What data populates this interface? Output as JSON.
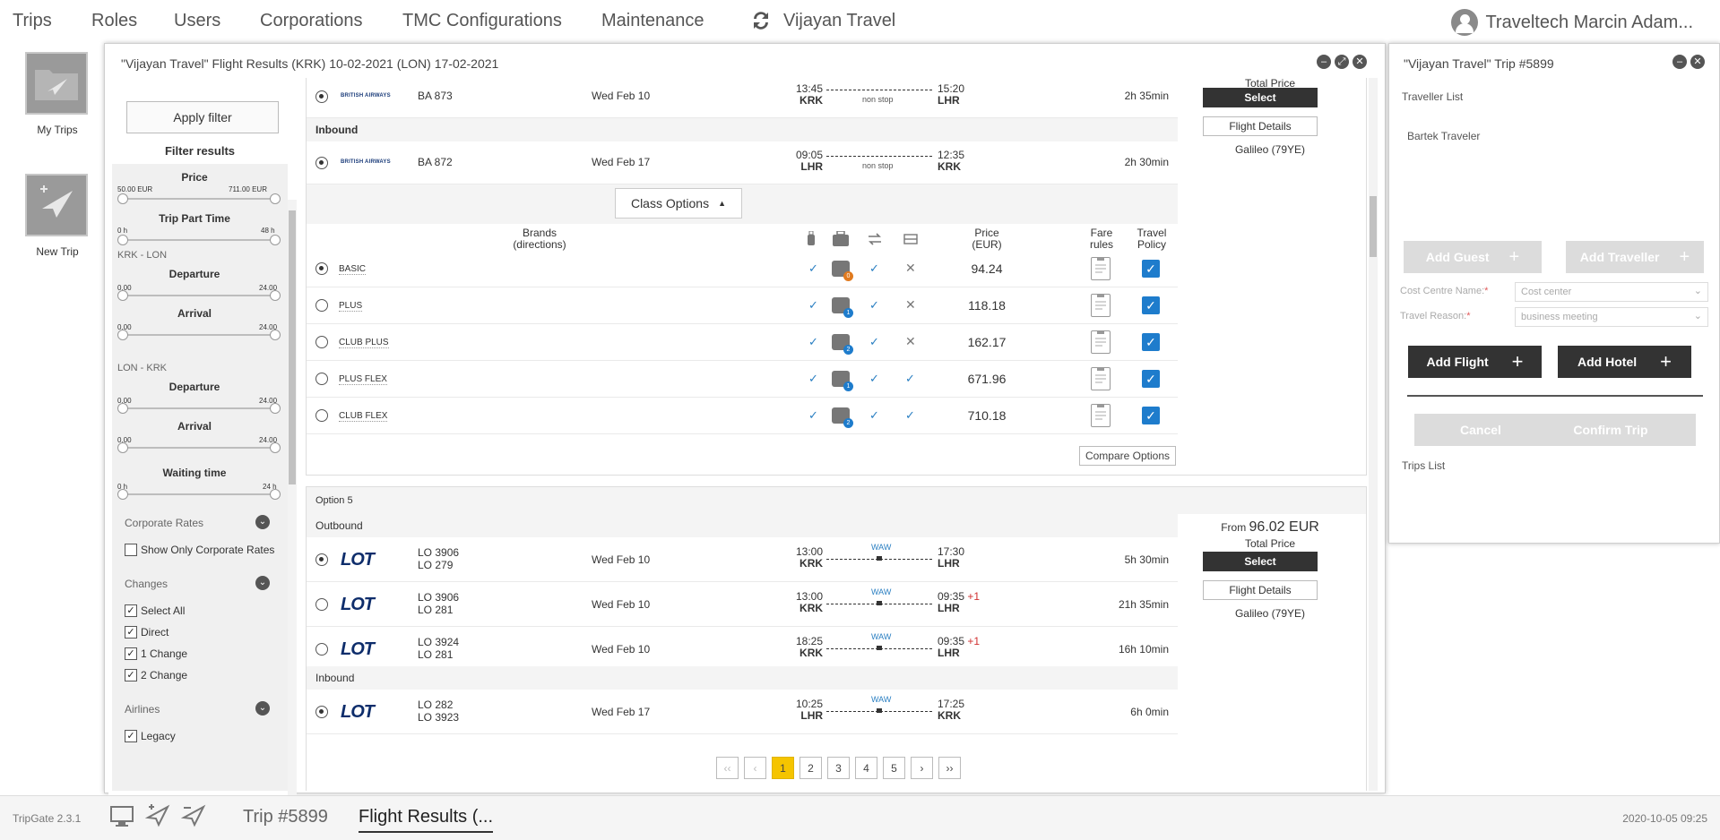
{
  "topnav": {
    "items": [
      "Trips",
      "Roles",
      "Users",
      "Corporations",
      "TMC Configurations",
      "Maintenance"
    ],
    "agency": "Vijayan Travel",
    "user": "Traveltech Marcin Adam..."
  },
  "apps": [
    {
      "label": "My Trips",
      "icon": "my-trips-icon"
    },
    {
      "label": "New Trip",
      "icon": "new-trip-icon"
    }
  ],
  "flight_window": {
    "title": "\"Vijayan Travel\" Flight Results (KRK) 10-02-2021 (LON) 17-02-2021"
  },
  "filters": {
    "apply_label": "Apply filter",
    "title": "Filter results",
    "price": {
      "label": "Price",
      "min": "50.00 EUR",
      "max": "711.00 EUR"
    },
    "trip_part_time": {
      "label": "Trip Part Time",
      "min": "0 h",
      "max": "48 h"
    },
    "route1": "KRK - LON",
    "route2": "LON - KRK",
    "departure": "Departure",
    "arrival": "Arrival",
    "time_min": "0.00",
    "time_max": "24.00",
    "waiting": {
      "label": "Waiting time",
      "min": "0 h",
      "max": "24 h"
    },
    "corporate_rates": {
      "label": "Corporate Rates",
      "checkbox": "Show Only Corporate Rates"
    },
    "changes": {
      "label": "Changes",
      "options": [
        "Select All",
        "Direct",
        "1 Change",
        "2 Change"
      ]
    },
    "airlines": {
      "label": "Airlines",
      "first": "Legacy"
    }
  },
  "option4": {
    "outbound": {
      "flight": "BA 873",
      "date": "Wed Feb 10",
      "dep_time": "13:45",
      "dep": "KRK",
      "arr_time": "15:20",
      "arr": "LHR",
      "stops": "non stop",
      "duration": "2h 35min",
      "airline": "BRITISH AIRWAYS"
    },
    "inbound_label": "Inbound",
    "inbound": {
      "flight": "BA 872",
      "date": "Wed Feb 17",
      "dep_time": "09:05",
      "dep": "LHR",
      "arr_time": "12:35",
      "arr": "KRK",
      "stops": "non stop",
      "duration": "2h 30min",
      "airline": "BRITISH AIRWAYS"
    },
    "total_price_label": "Total Price",
    "select_label": "Select",
    "details_label": "Flight Details",
    "source": "Galileo (79YE)",
    "class_options_label": "Class Options",
    "headers": {
      "brands": "Brands",
      "directions": "(directions)",
      "price": "Price",
      "price_unit": "(EUR)",
      "fare": "Fare",
      "fare2": "rules",
      "policy": "Travel",
      "policy2": "Policy"
    },
    "brands": [
      {
        "name": "BASIC",
        "price": "94.24",
        "bags": "0",
        "badge_color": "#e07a1f",
        "change": "true",
        "refund": "false",
        "selected": true
      },
      {
        "name": "PLUS",
        "price": "118.18",
        "bags": "1",
        "badge_color": "#1e7ccc",
        "change": "true",
        "refund": "false",
        "selected": false
      },
      {
        "name": "CLUB PLUS",
        "price": "162.17",
        "bags": "2",
        "badge_color": "#1e7ccc",
        "change": "true",
        "refund": "false",
        "selected": false
      },
      {
        "name": "PLUS FLEX",
        "price": "671.96",
        "bags": "1",
        "badge_color": "#1e7ccc",
        "change": "true",
        "refund": "true",
        "selected": false
      },
      {
        "name": "CLUB FLEX",
        "price": "710.18",
        "bags": "2",
        "badge_color": "#1e7ccc",
        "change": "true",
        "refund": "true",
        "selected": false
      }
    ],
    "compare_label": "Compare Options"
  },
  "option5": {
    "title": "Option 5",
    "outbound_label": "Outbound",
    "inbound_label": "Inbound",
    "from_label": "From",
    "price": "96.02 EUR",
    "total_price_label": "Total Price",
    "select_label": "Select",
    "details_label": "Flight Details",
    "source": "Galileo (79YE)",
    "outbound": [
      {
        "f1": "LO 3906",
        "f2": "LO 279",
        "date": "Wed Feb 10",
        "dep_time": "13:00",
        "dep": "KRK",
        "arr_time": "17:30",
        "plus": "",
        "arr": "LHR",
        "via": "WAW",
        "duration": "5h 30min",
        "selected": true
      },
      {
        "f1": "LO 3906",
        "f2": "LO 281",
        "date": "Wed Feb 10",
        "dep_time": "13:00",
        "dep": "KRK",
        "arr_time": "09:35",
        "plus": "+1",
        "arr": "LHR",
        "via": "WAW",
        "duration": "21h 35min",
        "selected": false
      },
      {
        "f1": "LO 3924",
        "f2": "LO 281",
        "date": "Wed Feb 10",
        "dep_time": "18:25",
        "dep": "KRK",
        "arr_time": "09:35",
        "plus": "+1",
        "arr": "LHR",
        "via": "WAW",
        "duration": "16h 10min",
        "selected": false
      }
    ],
    "inbound": [
      {
        "f1": "LO 282",
        "f2": "LO 3923",
        "date": "Wed Feb 17",
        "dep_time": "10:25",
        "dep": "LHR",
        "arr_time": "17:25",
        "plus": "",
        "arr": "KRK",
        "via": "WAW",
        "duration": "6h 0min",
        "selected": true
      }
    ]
  },
  "pager": {
    "first": "‹‹",
    "prev": "‹",
    "pages": [
      "1",
      "2",
      "3",
      "4",
      "5"
    ],
    "next": "›",
    "last": "››",
    "active": "1"
  },
  "trip_window": {
    "title": "\"Vijayan Travel\" Trip #5899",
    "traveller_list": "Traveller List",
    "traveller": "Bartek Traveler",
    "add_guest": "Add Guest",
    "add_traveller": "Add Traveller",
    "cost_centre_label": "Cost Centre Name:",
    "cost_centre_value": "Cost center",
    "travel_reason_label": "Travel Reason:",
    "travel_reason_value": "business meeting",
    "add_flight": "Add Flight",
    "add_hotel": "Add Hotel",
    "cancel": "Cancel",
    "confirm": "Confirm Trip",
    "trips_list": "Trips List"
  },
  "bottombar": {
    "version": "TripGate 2.3.1",
    "tab1": "Trip #5899",
    "tab2": "Flight Results (...",
    "datetime": "2020-10-05 09:25"
  }
}
